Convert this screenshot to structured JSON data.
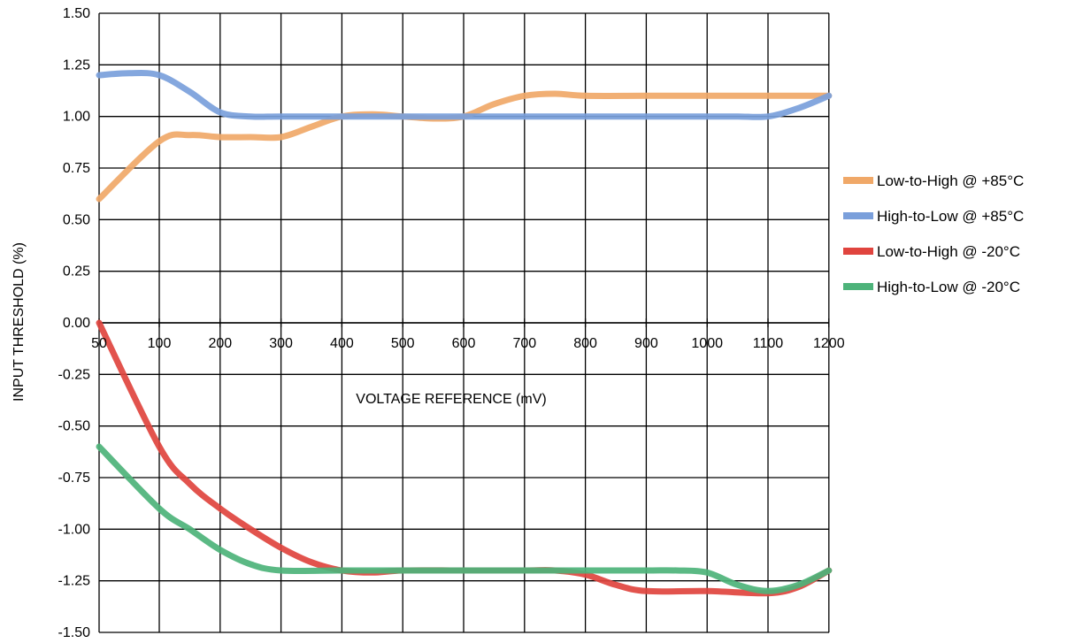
{
  "chart_data": {
    "type": "line",
    "xlabel": "VOLTAGE REFERENCE  (mV)",
    "ylabel": "INPUT THRESHOLD  (%)",
    "x_ticks": [
      50,
      100,
      200,
      300,
      400,
      500,
      600,
      700,
      800,
      900,
      1000,
      1100,
      1200
    ],
    "x_tick_labels": [
      "50",
      "100",
      "200",
      "300",
      "400",
      "500",
      "600",
      "700",
      "800",
      "900",
      "1000",
      "1100",
      "1200"
    ],
    "y_ticks": [
      1.5,
      1.25,
      1.0,
      0.75,
      0.5,
      0.25,
      0.0,
      -0.25,
      -0.5,
      -0.75,
      -1.0,
      -1.25,
      -1.5
    ],
    "y_tick_labels": [
      "1.50",
      "1.25",
      "1.00",
      "0.75",
      "0.50",
      "0.25",
      "0.00",
      "-0.25",
      "-0.50",
      "-0.75",
      "-1.00",
      "-1.25",
      "-1.50"
    ],
    "ylim": [
      -1.5,
      1.5
    ],
    "grid": true,
    "legend_position": "right",
    "series": [
      {
        "name": "Low-to-High @ +85°C",
        "color": "#f0a868",
        "points": [
          [
            50,
            0.6
          ],
          [
            100,
            0.88
          ],
          [
            150,
            0.91
          ],
          [
            200,
            0.9
          ],
          [
            250,
            0.9
          ],
          [
            300,
            0.9
          ],
          [
            350,
            0.95
          ],
          [
            400,
            1.0
          ],
          [
            450,
            1.01
          ],
          [
            500,
            1.0
          ],
          [
            550,
            0.99
          ],
          [
            600,
            1.0
          ],
          [
            650,
            1.06
          ],
          [
            700,
            1.1
          ],
          [
            750,
            1.11
          ],
          [
            800,
            1.1
          ],
          [
            900,
            1.1
          ],
          [
            1000,
            1.1
          ],
          [
            1100,
            1.1
          ],
          [
            1200,
            1.1
          ]
        ]
      },
      {
        "name": "High-to-Low @ +85°C",
        "color": "#7a9fdb",
        "points": [
          [
            50,
            1.2
          ],
          [
            75,
            1.21
          ],
          [
            100,
            1.2
          ],
          [
            150,
            1.12
          ],
          [
            200,
            1.02
          ],
          [
            250,
            1.0
          ],
          [
            300,
            1.0
          ],
          [
            400,
            1.0
          ],
          [
            500,
            1.0
          ],
          [
            600,
            1.0
          ],
          [
            700,
            1.0
          ],
          [
            800,
            1.0
          ],
          [
            900,
            1.0
          ],
          [
            1000,
            1.0
          ],
          [
            1050,
            1.0
          ],
          [
            1100,
            1.0
          ],
          [
            1150,
            1.04
          ],
          [
            1200,
            1.1
          ]
        ]
      },
      {
        "name": "Low-to-High @ -20°C",
        "color": "#e0443e",
        "points": [
          [
            50,
            0.0
          ],
          [
            100,
            -0.6
          ],
          [
            150,
            -0.78
          ],
          [
            200,
            -0.9
          ],
          [
            250,
            -1.0
          ],
          [
            300,
            -1.09
          ],
          [
            350,
            -1.16
          ],
          [
            400,
            -1.2
          ],
          [
            450,
            -1.21
          ],
          [
            500,
            -1.2
          ],
          [
            600,
            -1.2
          ],
          [
            700,
            -1.2
          ],
          [
            750,
            -1.2
          ],
          [
            800,
            -1.22
          ],
          [
            850,
            -1.27
          ],
          [
            900,
            -1.3
          ],
          [
            1000,
            -1.3
          ],
          [
            1100,
            -1.31
          ],
          [
            1150,
            -1.28
          ],
          [
            1200,
            -1.2
          ]
        ]
      },
      {
        "name": "High-to-Low @ -20°C",
        "color": "#4db37a",
        "points": [
          [
            50,
            -0.6
          ],
          [
            100,
            -0.9
          ],
          [
            150,
            -1.0
          ],
          [
            200,
            -1.1
          ],
          [
            250,
            -1.17
          ],
          [
            300,
            -1.2
          ],
          [
            400,
            -1.2
          ],
          [
            500,
            -1.2
          ],
          [
            600,
            -1.2
          ],
          [
            700,
            -1.2
          ],
          [
            800,
            -1.2
          ],
          [
            900,
            -1.2
          ],
          [
            950,
            -1.2
          ],
          [
            1000,
            -1.21
          ],
          [
            1050,
            -1.27
          ],
          [
            1100,
            -1.3
          ],
          [
            1150,
            -1.27
          ],
          [
            1200,
            -1.2
          ]
        ]
      }
    ]
  }
}
